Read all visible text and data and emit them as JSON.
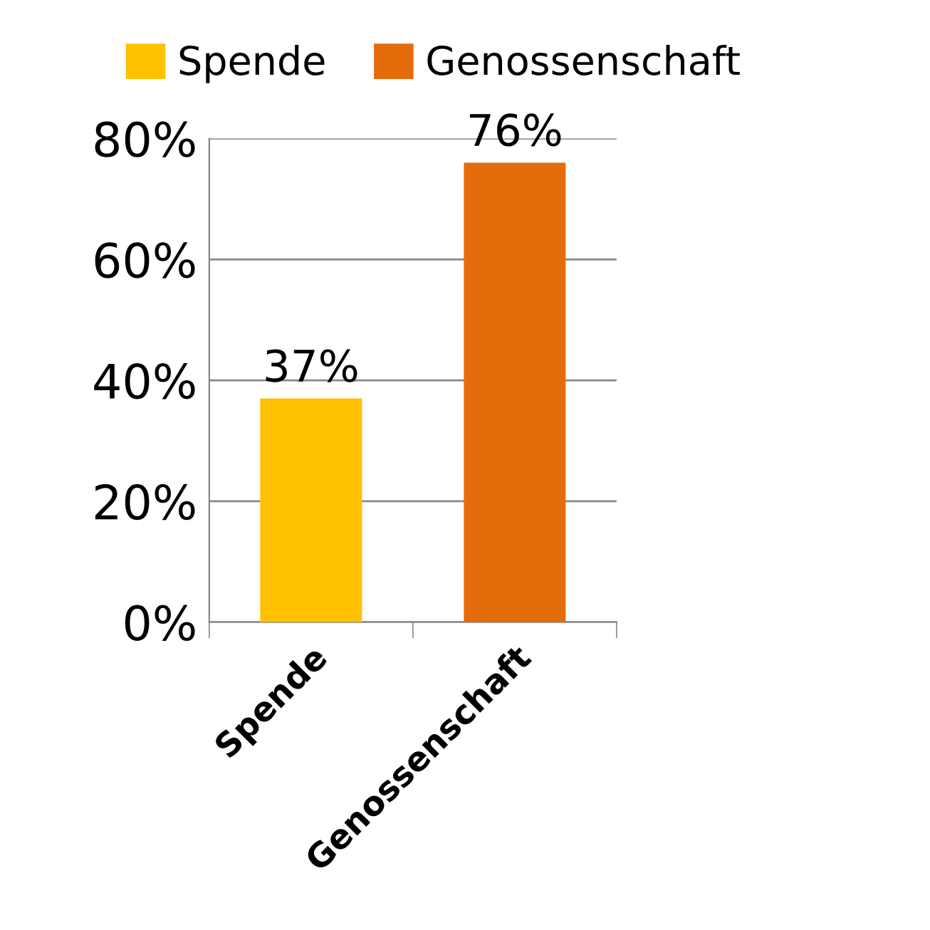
{
  "chart_data": {
    "type": "bar",
    "categories": [
      "Spende",
      "Genossenschaft"
    ],
    "series": [
      {
        "name": "Spende",
        "color": "#ffc000",
        "values": [
          37,
          null
        ],
        "value_labels": [
          "37%",
          null
        ]
      },
      {
        "name": "Genossenschaft",
        "color": "#e46c0a",
        "values": [
          null,
          76
        ],
        "value_labels": [
          null,
          "76%"
        ]
      }
    ],
    "ylim": [
      0,
      80
    ],
    "yticks": [
      {
        "value": 0,
        "label": "0%"
      },
      {
        "value": 20,
        "label": "20%"
      },
      {
        "value": 40,
        "label": "40%"
      },
      {
        "value": 60,
        "label": "60%"
      },
      {
        "value": 80,
        "label": "80%"
      }
    ],
    "grid": "y",
    "legend": "top"
  }
}
